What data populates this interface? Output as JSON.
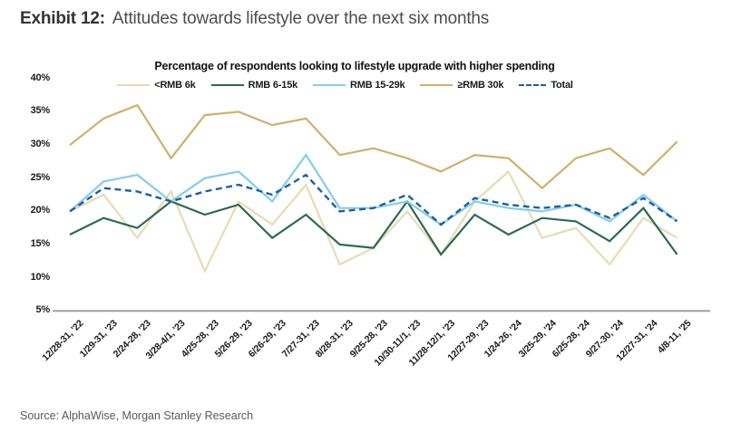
{
  "header": {
    "exhibit_label": "Exhibit 12:",
    "title": "Attitudes towards lifestyle over the next six months"
  },
  "chart_data": {
    "type": "line",
    "title": "Percentage of respondents looking to lifestyle upgrade with higher spending",
    "categories": [
      "12/28-31, '22",
      "1/29-31, '23",
      "2/24-28, '23",
      "3/28-4/1, '23",
      "4/25-28, '23",
      "5/26-29, '23",
      "6/26-29, '23",
      "7/27-31, '23",
      "8/28-31, '23",
      "9/25-28, '23",
      "10/30-11/1, '23",
      "11/28-12/1, '23",
      "12/27-29, '23",
      "1/24-26, '24",
      "3/25-29, '24",
      "6/25-28, '24",
      "9/27-30, '24",
      "12/27-31, '24",
      "4/8-11, '25"
    ],
    "series": [
      {
        "name": "<RMB 6k",
        "color": "#e8dbb4",
        "style": "solid",
        "values": [
          20,
          22.5,
          16,
          23,
          11,
          21.5,
          18,
          24,
          12,
          14.5,
          20,
          13.5,
          21.5,
          26,
          16,
          17.5,
          12,
          19,
          16
        ]
      },
      {
        "name": "RMB 6-15k",
        "color": "#2b6a52",
        "style": "solid",
        "values": [
          16.5,
          19,
          17.5,
          21.5,
          19.5,
          21,
          16,
          19.5,
          15,
          14.5,
          21.5,
          13.5,
          19.5,
          16.5,
          19,
          18.5,
          15.5,
          20.5,
          13.5
        ]
      },
      {
        "name": "RMB 15-29k",
        "color": "#85cdec",
        "style": "solid",
        "values": [
          20,
          24.5,
          25.5,
          21.5,
          25,
          26,
          21.5,
          28.5,
          20.5,
          20.5,
          21.5,
          18,
          21.5,
          20.5,
          20,
          21,
          18.5,
          22.5,
          18.5
        ]
      },
      {
        "name": "≥RMB 30k",
        "color": "#d1af69",
        "style": "solid",
        "values": [
          30,
          34,
          36,
          28,
          34.5,
          35,
          33,
          34,
          28.5,
          29.5,
          28,
          26,
          28.5,
          28,
          23.5,
          28,
          29.5,
          25.5,
          30.5
        ]
      },
      {
        "name": "Total",
        "color": "#1d5fa6",
        "style": "dashed",
        "values": [
          20,
          23.5,
          23,
          21.5,
          23,
          24,
          22.5,
          25.5,
          20,
          20.5,
          22.5,
          18,
          22,
          21,
          20.5,
          21,
          19,
          22,
          18.5
        ]
      }
    ],
    "yticks": [
      "5%",
      "10%",
      "15%",
      "20%",
      "25%",
      "30%",
      "35%",
      "40%"
    ],
    "ylim": [
      5,
      40
    ],
    "ytick_step": 5,
    "grid": false,
    "legend_position": "top",
    "axis_color": "#a0a0a0"
  },
  "footer": {
    "source": "Source: AlphaWise, Morgan Stanley Research"
  }
}
